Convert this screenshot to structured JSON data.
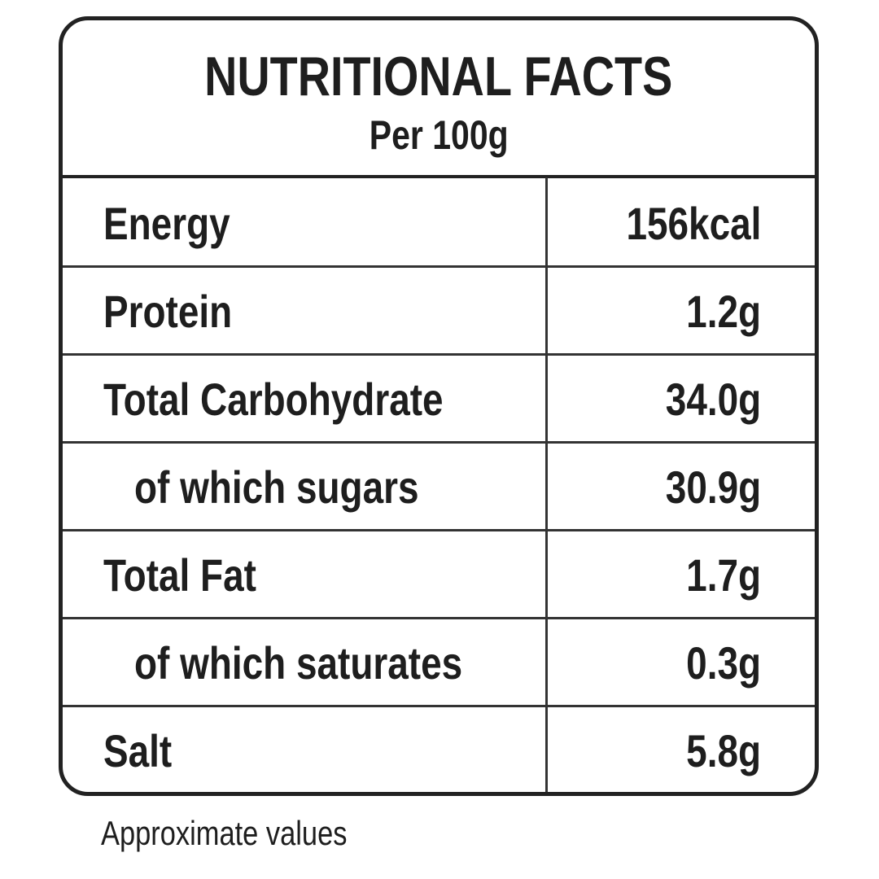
{
  "header": {
    "title": "NUTRITIONAL FACTS",
    "subtitle": "Per 100g"
  },
  "table": {
    "rows": [
      [
        "Energy",
        "156kcal"
      ],
      [
        "Protein",
        "1.2g"
      ],
      [
        "Total Carbohydrate",
        "34.0g"
      ],
      [
        "of which sugars",
        "30.9g"
      ],
      [
        "Total Fat",
        "1.7g"
      ],
      [
        "of which saturates",
        "0.3g"
      ],
      [
        "Salt",
        "5.8g"
      ]
    ]
  },
  "footer": {
    "note": "Approximate values"
  }
}
